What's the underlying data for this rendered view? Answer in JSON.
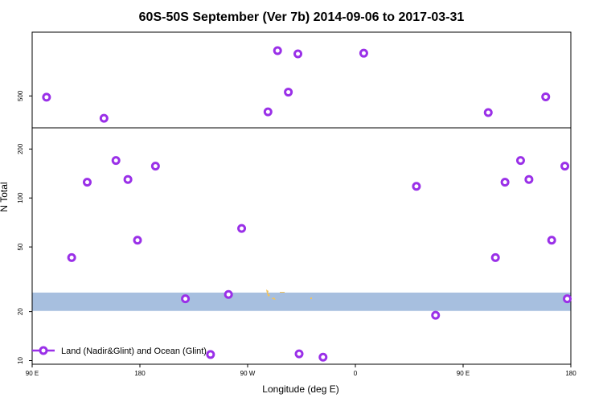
{
  "chart_data": {
    "type": "scatter",
    "title": "60S-50S September (Ver 7b)   2014-09-06 to 2017-03-31",
    "xlabel": "Longitude (deg E)",
    "ylabel": "N Total",
    "x_ticks": [
      {
        "value": 0,
        "label": "90 E"
      },
      {
        "value": 90,
        "label": "180"
      },
      {
        "value": 180,
        "label": "90 W"
      },
      {
        "value": 270,
        "label": "0"
      },
      {
        "value": 360,
        "label": "90 E"
      },
      {
        "value": 450,
        "label": "180"
      }
    ],
    "xlim": [
      0,
      450
    ],
    "upper_panel": {
      "scale": "linear",
      "ylim": [
        250,
        1000
      ],
      "y_ticks": [
        {
          "value": 500,
          "label": "500"
        }
      ]
    },
    "lower_panel": {
      "scale": "log",
      "ylim": [
        9.5,
        270
      ],
      "y_ticks": [
        {
          "value": 10,
          "label": "10"
        },
        {
          "value": 20,
          "label": "20"
        },
        {
          "value": 50,
          "label": "50"
        },
        {
          "value": 100,
          "label": "100"
        },
        {
          "value": 200,
          "label": "200"
        }
      ]
    },
    "band": {
      "ymin": 20.2,
      "ymax": 26.2,
      "color": "#a7bfdf"
    },
    "series": [
      {
        "name": "Land (Nadir&Glint) and Ocean (Glint)",
        "color": "#9a30e8",
        "x": [
          12,
          60,
          222,
          277,
          381,
          429,
          197,
          205,
          214,
          33,
          46,
          70,
          80,
          88,
          103,
          128,
          149,
          164,
          175,
          223,
          243,
          321,
          337,
          387,
          395,
          408,
          415,
          434,
          445,
          447
        ],
        "y": [
          490,
          325,
          830,
          835,
          370,
          493,
          375,
          855,
          530,
          43,
          125,
          170,
          130,
          55,
          157,
          24,
          10.9,
          25.5,
          65,
          11,
          10.5,
          118,
          19,
          43,
          125,
          170,
          130,
          55,
          157,
          24
        ]
      }
    ],
    "legend": {
      "position": "bottom-left"
    }
  }
}
